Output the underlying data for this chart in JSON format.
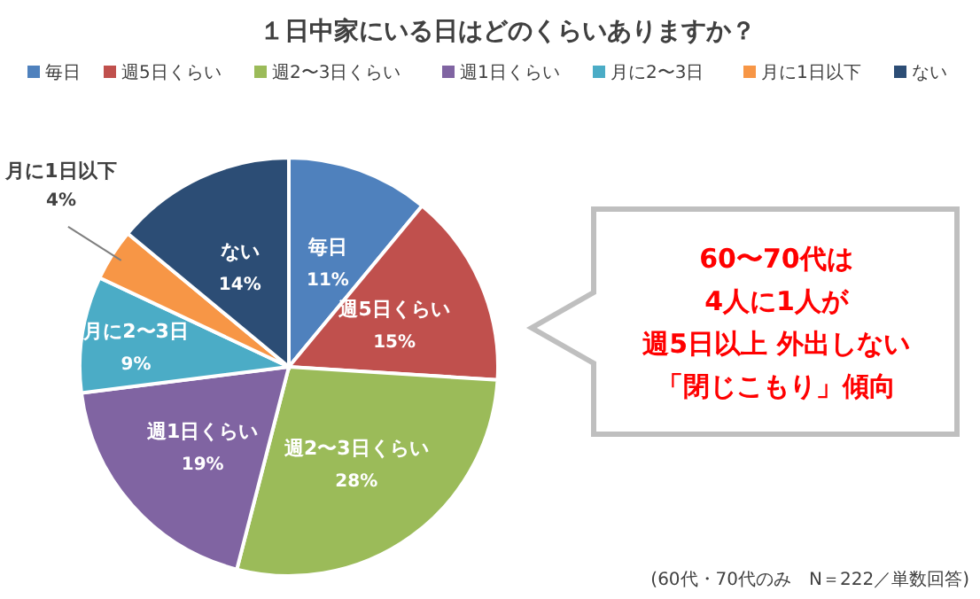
{
  "chart_data": {
    "type": "pie",
    "title": "１日中家にいる日はどのくらいありますか？",
    "categories": [
      "毎日",
      "週5日くらい",
      "週2〜3日くらい",
      "週1日くらい",
      "月に2〜3日",
      "月に1日以下",
      "ない"
    ],
    "values": [
      11,
      15,
      28,
      19,
      9,
      4,
      14
    ],
    "colors": [
      "#4f81bd",
      "#c0504d",
      "#9bbb59",
      "#8064a2",
      "#4bacc6",
      "#f79646",
      "#2c4d75"
    ],
    "value_labels": [
      "11%",
      "15%",
      "28%",
      "19%",
      "9%",
      "4%",
      "14%"
    ],
    "legend": "top",
    "annotations": [
      "60〜70代は",
      "4人に1人が",
      "週5日以上 外出しない",
      "「閉じこもり」傾向",
      "(60代・70代のみ　N＝222／単数回答)"
    ]
  }
}
